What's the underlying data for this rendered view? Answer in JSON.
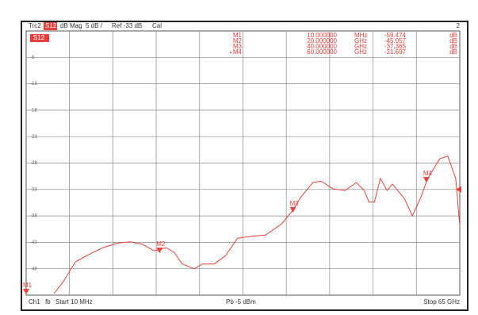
{
  "chart_data": {
    "type": "line",
    "header": {
      "trace": "Trc2",
      "param": "S12",
      "format": "dB Mag",
      "scale": "5 dB /",
      "ref": "Ref -33 dB",
      "cal": "Cal",
      "channel_no": "2"
    },
    "footer": {
      "channel": "Ch1",
      "mode": "fb",
      "start": "Start 10 MHz",
      "power": "Pb -5 dBm",
      "stop": "Stop 65 GHz"
    },
    "color": "#e8403a",
    "xlim": [
      0.01,
      65
    ],
    "xticks": [
      6.5,
      13,
      19.5,
      26,
      32.5,
      39,
      45.5,
      52,
      58.5
    ],
    "ylim": [
      -53,
      -3
    ],
    "yticks": [
      -8,
      -13,
      -18,
      -23,
      -28,
      -33,
      -38,
      -43,
      -48
    ],
    "ref_level": -33,
    "grid": true,
    "x": [
      4.2,
      5.6,
      7.4,
      9.1,
      11.5,
      13.9,
      15.7,
      17.5,
      19.2,
      21.0,
      22.2,
      23.4,
      25.2,
      26.4,
      28.2,
      29.9,
      31.7,
      33.5,
      35.9,
      38.3,
      40.0,
      41.2,
      43.0,
      44.2,
      46.0,
      47.8,
      49.5,
      50.7,
      51.4,
      52.2,
      53.1,
      54.1,
      54.9,
      56.7,
      57.9,
      59.1,
      60.2,
      62.0,
      63.2,
      64.4,
      65.0
    ],
    "values": [
      -52.7,
      -50.4,
      -46.7,
      -45.5,
      -44.0,
      -43.1,
      -42.9,
      -43.4,
      -44.6,
      -44.0,
      -44.9,
      -47.1,
      -48.0,
      -47.1,
      -47.1,
      -45.5,
      -42.2,
      -41.9,
      -41.6,
      -39.5,
      -36.9,
      -34.4,
      -31.7,
      -31.4,
      -32.9,
      -33.2,
      -31.7,
      -33.2,
      -35.4,
      -35.4,
      -30.9,
      -33.2,
      -32.0,
      -34.7,
      -38.0,
      -34.7,
      -30.9,
      -27.2,
      -26.7,
      -30.9,
      -39.9
    ],
    "markers": [
      {
        "label": "M1",
        "stimulus": {
          "value": 0.01,
          "label": "10.000000"
        },
        "unit": "MHz",
        "response": -59.474,
        "response_unit": "dB"
      },
      {
        "label": "M2",
        "stimulus": {
          "value": 20,
          "label": "20.000000"
        },
        "unit": "GHz",
        "response": -45.057,
        "response_unit": "dB"
      },
      {
        "label": "M3",
        "stimulus": {
          "value": 40,
          "label": "40.000000"
        },
        "unit": "GHz",
        "response": -37.365,
        "response_unit": "dB"
      },
      {
        "label": "M4",
        "stimulus": {
          "value": 60,
          "label": "60.000000"
        },
        "unit": "GHz",
        "response": -31.697,
        "response_unit": "dB"
      }
    ]
  }
}
